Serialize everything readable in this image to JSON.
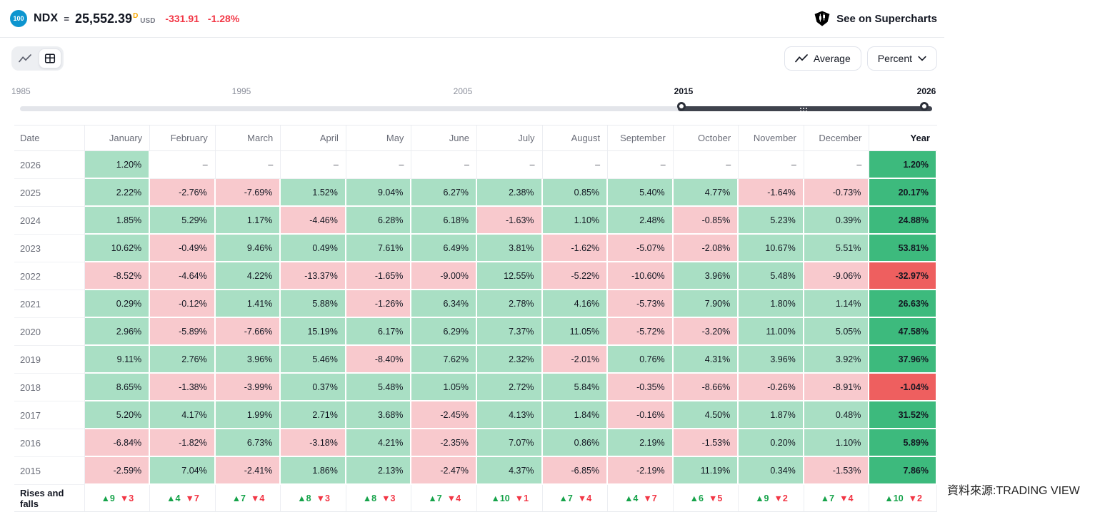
{
  "header": {
    "badge": "100",
    "symbol": "NDX",
    "separator": "=",
    "price": "25,552.39",
    "price_flag": "D",
    "currency": "USD",
    "change_abs": "-331.91",
    "change_pct": "-1.28%",
    "supercharts_label": "See on Supercharts"
  },
  "toolbar": {
    "chart_view_icon": "line-chart-icon",
    "table_view_icon": "table-grid-icon",
    "average_label": "Average",
    "percent_label": "Percent"
  },
  "slider": {
    "ticks": [
      "1985",
      "1995",
      "2005",
      "2015",
      "2026"
    ],
    "selected_start": "2015",
    "selected_end": "2026"
  },
  "table": {
    "date_header": "Date",
    "months": [
      "January",
      "February",
      "March",
      "April",
      "May",
      "June",
      "July",
      "August",
      "September",
      "October",
      "November",
      "December"
    ],
    "year_header": "Year",
    "dash": "–",
    "rows": [
      {
        "year": "2026",
        "values": [
          "1.20%",
          "–",
          "–",
          "–",
          "–",
          "–",
          "–",
          "–",
          "–",
          "–",
          "–",
          "–"
        ],
        "total": "1.20%"
      },
      {
        "year": "2025",
        "values": [
          "2.22%",
          "-2.76%",
          "-7.69%",
          "1.52%",
          "9.04%",
          "6.27%",
          "2.38%",
          "0.85%",
          "5.40%",
          "4.77%",
          "-1.64%",
          "-0.73%"
        ],
        "total": "20.17%"
      },
      {
        "year": "2024",
        "values": [
          "1.85%",
          "5.29%",
          "1.17%",
          "-4.46%",
          "6.28%",
          "6.18%",
          "-1.63%",
          "1.10%",
          "2.48%",
          "-0.85%",
          "5.23%",
          "0.39%"
        ],
        "total": "24.88%"
      },
      {
        "year": "2023",
        "values": [
          "10.62%",
          "-0.49%",
          "9.46%",
          "0.49%",
          "7.61%",
          "6.49%",
          "3.81%",
          "-1.62%",
          "-5.07%",
          "-2.08%",
          "10.67%",
          "5.51%"
        ],
        "total": "53.81%"
      },
      {
        "year": "2022",
        "values": [
          "-8.52%",
          "-4.64%",
          "4.22%",
          "-13.37%",
          "-1.65%",
          "-9.00%",
          "12.55%",
          "-5.22%",
          "-10.60%",
          "3.96%",
          "5.48%",
          "-9.06%"
        ],
        "total": "-32.97%"
      },
      {
        "year": "2021",
        "values": [
          "0.29%",
          "-0.12%",
          "1.41%",
          "5.88%",
          "-1.26%",
          "6.34%",
          "2.78%",
          "4.16%",
          "-5.73%",
          "7.90%",
          "1.80%",
          "1.14%"
        ],
        "total": "26.63%"
      },
      {
        "year": "2020",
        "values": [
          "2.96%",
          "-5.89%",
          "-7.66%",
          "15.19%",
          "6.17%",
          "6.29%",
          "7.37%",
          "11.05%",
          "-5.72%",
          "-3.20%",
          "11.00%",
          "5.05%"
        ],
        "total": "47.58%"
      },
      {
        "year": "2019",
        "values": [
          "9.11%",
          "2.76%",
          "3.96%",
          "5.46%",
          "-8.40%",
          "7.62%",
          "2.32%",
          "-2.01%",
          "0.76%",
          "4.31%",
          "3.96%",
          "3.92%"
        ],
        "total": "37.96%"
      },
      {
        "year": "2018",
        "values": [
          "8.65%",
          "-1.38%",
          "-3.99%",
          "0.37%",
          "5.48%",
          "1.05%",
          "2.72%",
          "5.84%",
          "-0.35%",
          "-8.66%",
          "-0.26%",
          "-8.91%"
        ],
        "total": "-1.04%"
      },
      {
        "year": "2017",
        "values": [
          "5.20%",
          "4.17%",
          "1.99%",
          "2.71%",
          "3.68%",
          "-2.45%",
          "4.13%",
          "1.84%",
          "-0.16%",
          "4.50%",
          "1.87%",
          "0.48%"
        ],
        "total": "31.52%"
      },
      {
        "year": "2016",
        "values": [
          "-6.84%",
          "-1.82%",
          "6.73%",
          "-3.18%",
          "4.21%",
          "-2.35%",
          "7.07%",
          "0.86%",
          "2.19%",
          "-1.53%",
          "0.20%",
          "1.10%"
        ],
        "total": "5.89%"
      },
      {
        "year": "2015",
        "values": [
          "-2.59%",
          "7.04%",
          "-2.41%",
          "1.86%",
          "2.13%",
          "-2.47%",
          "4.37%",
          "-6.85%",
          "-2.19%",
          "11.19%",
          "0.34%",
          "-1.53%"
        ],
        "total": "7.86%"
      }
    ],
    "rises": {
      "label": "Rises and falls",
      "cells": [
        [
          "9",
          "3"
        ],
        [
          "4",
          "7"
        ],
        [
          "7",
          "4"
        ],
        [
          "8",
          "3"
        ],
        [
          "8",
          "3"
        ],
        [
          "7",
          "4"
        ],
        [
          "10",
          "1"
        ],
        [
          "7",
          "4"
        ],
        [
          "4",
          "7"
        ],
        [
          "6",
          "5"
        ],
        [
          "9",
          "2"
        ],
        [
          "7",
          "4"
        ]
      ],
      "total": [
        "10",
        "2"
      ]
    }
  },
  "footer": {
    "source": "資料來源:TRADING VIEW"
  },
  "colors": {
    "pos_bg": "#a9dfc4",
    "neg_bg": "#f8c9cd",
    "pos_strong": "#3dba7d",
    "neg_strong": "#ee5f5f",
    "up_green": "#16a34a",
    "down_red": "#f23645",
    "change_red": "#f23645",
    "badge_blue": "#0d95cf",
    "slider_dark": "#3f434d",
    "slider_track": "#e3e5ea",
    "text_gray": "#6a6d78"
  }
}
